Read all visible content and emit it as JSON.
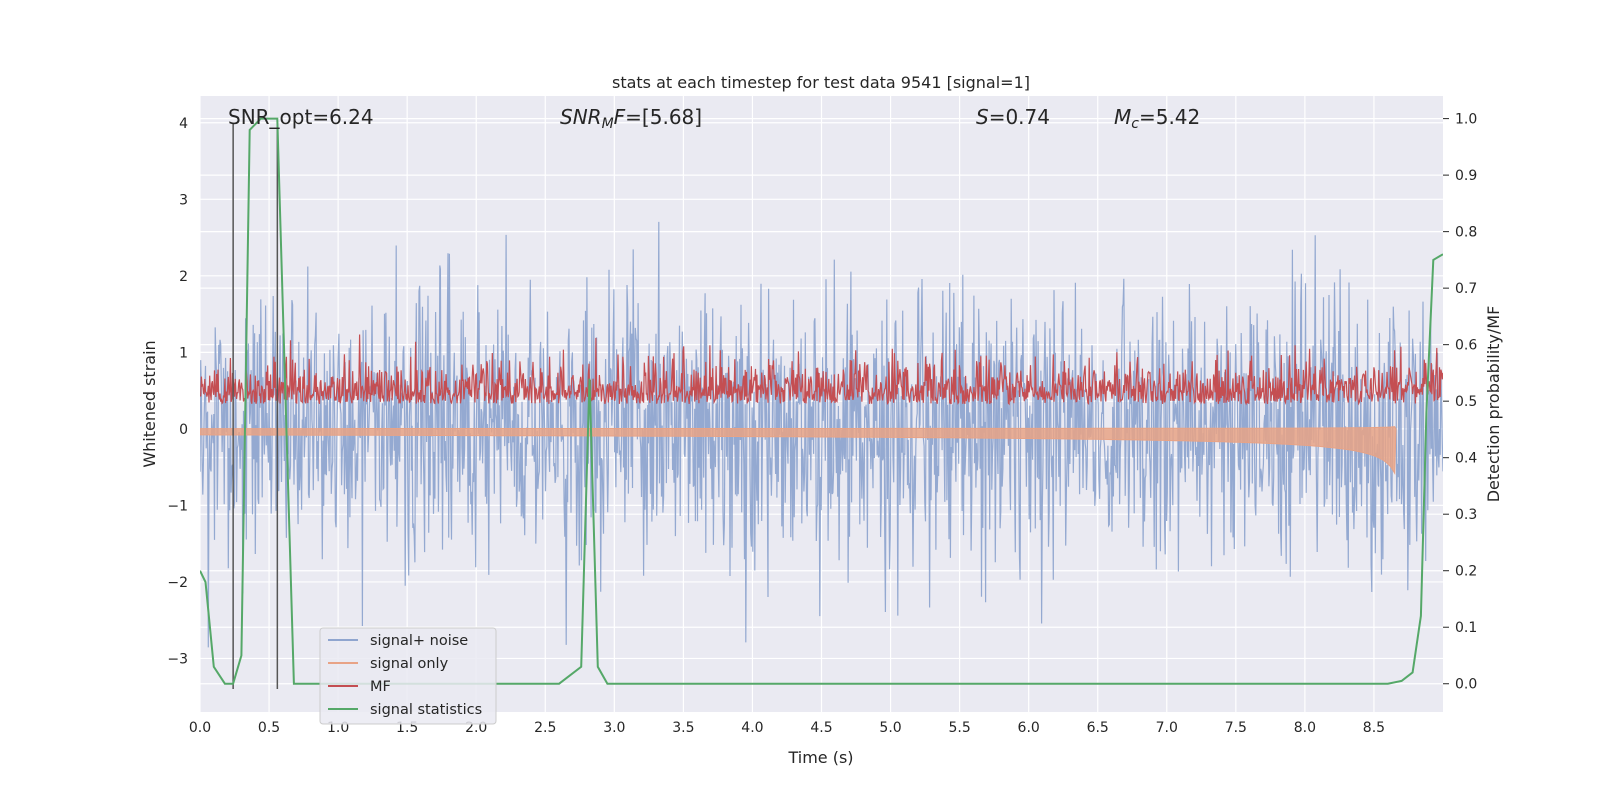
{
  "chart_data": {
    "type": "line",
    "title": "stats at each timestep for test data 9541 [signal=1]",
    "xlabel": "Time (s)",
    "ylabel_left": "Whitened strain",
    "ylabel_right": "Detection probability/MF",
    "xlim": [
      0.0,
      9.0
    ],
    "ylim_left": [
      -3.7,
      4.35
    ],
    "ylim_right": [
      -0.05,
      1.04
    ],
    "x_ticks": [
      "0.0",
      "0.5",
      "1.0",
      "1.5",
      "2.0",
      "2.5",
      "3.0",
      "3.5",
      "4.0",
      "4.5",
      "5.0",
      "5.5",
      "6.0",
      "6.5",
      "7.0",
      "7.5",
      "8.0",
      "8.5"
    ],
    "x_tick_values": [
      0.0,
      0.5,
      1.0,
      1.5,
      2.0,
      2.5,
      3.0,
      3.5,
      4.0,
      4.5,
      5.0,
      5.5,
      6.0,
      6.5,
      7.0,
      7.5,
      8.0,
      8.5
    ],
    "y_left_ticks": [
      "−3",
      "−2",
      "−1",
      "0",
      "1",
      "2",
      "3",
      "4"
    ],
    "y_left_tick_values": [
      -3,
      -2,
      -1,
      0,
      1,
      2,
      3,
      4
    ],
    "y_right_ticks": [
      "0.0",
      "0.1",
      "0.2",
      "0.3",
      "0.4",
      "0.5",
      "0.6",
      "0.7",
      "0.8",
      "0.9",
      "1.0"
    ],
    "y_right_tick_values": [
      0.0,
      0.1,
      0.2,
      0.3,
      0.4,
      0.5,
      0.6,
      0.7,
      0.8,
      0.9,
      1.0
    ],
    "grid": true,
    "legend_position": "lower-left",
    "annotations": {
      "snr_opt": "SNR_opt=6.24",
      "snr_mf_sym": "SNR",
      "snr_mf_sub": "M",
      "snr_mf_rest": "F",
      "snr_mf_value": "=[5.68]",
      "s_sym": "S",
      "s_value": "=0.74",
      "mc_sym": "M",
      "mc_sub": "c",
      "mc_value": "=5.42"
    },
    "vertical_markers_x": [
      0.24,
      0.56
    ],
    "series": [
      {
        "name": "signal+ noise",
        "color": "#8fa5cf",
        "axis": "left",
        "kind": "noise",
        "n_points": 1800,
        "sigma": 0.9,
        "max_abs": 4.0
      },
      {
        "name": "signal only",
        "color": "#e8a386",
        "axis": "left",
        "kind": "chirp",
        "merger_time": 8.65,
        "peak_amplitude": 0.58
      },
      {
        "name": "MF",
        "color": "#c44e52",
        "axis": "right",
        "kind": "mf_trace",
        "n_points": 1800,
        "baseline": 0.5,
        "spike_x": 8.65,
        "spike_y": 0.59
      },
      {
        "name": "signal statistics",
        "color": "#55a868",
        "axis": "right",
        "kind": "line",
        "x": [
          0.0,
          0.04,
          0.1,
          0.18,
          0.24,
          0.3,
          0.36,
          0.44,
          0.56,
          0.62,
          0.68,
          2.6,
          2.76,
          2.82,
          2.88,
          2.95,
          8.6,
          8.7,
          8.78,
          8.84,
          8.88,
          8.93,
          9.0
        ],
        "y": [
          0.2,
          0.18,
          0.03,
          0.0,
          0.0,
          0.05,
          0.98,
          1.0,
          1.0,
          0.5,
          0.0,
          0.0,
          0.03,
          0.54,
          0.03,
          0.0,
          0.0,
          0.005,
          0.02,
          0.12,
          0.48,
          0.75,
          0.76
        ]
      }
    ]
  },
  "colors": {
    "plot_background": "#eaeaf2",
    "grid": "#ffffff",
    "marker_line": "#555555"
  }
}
